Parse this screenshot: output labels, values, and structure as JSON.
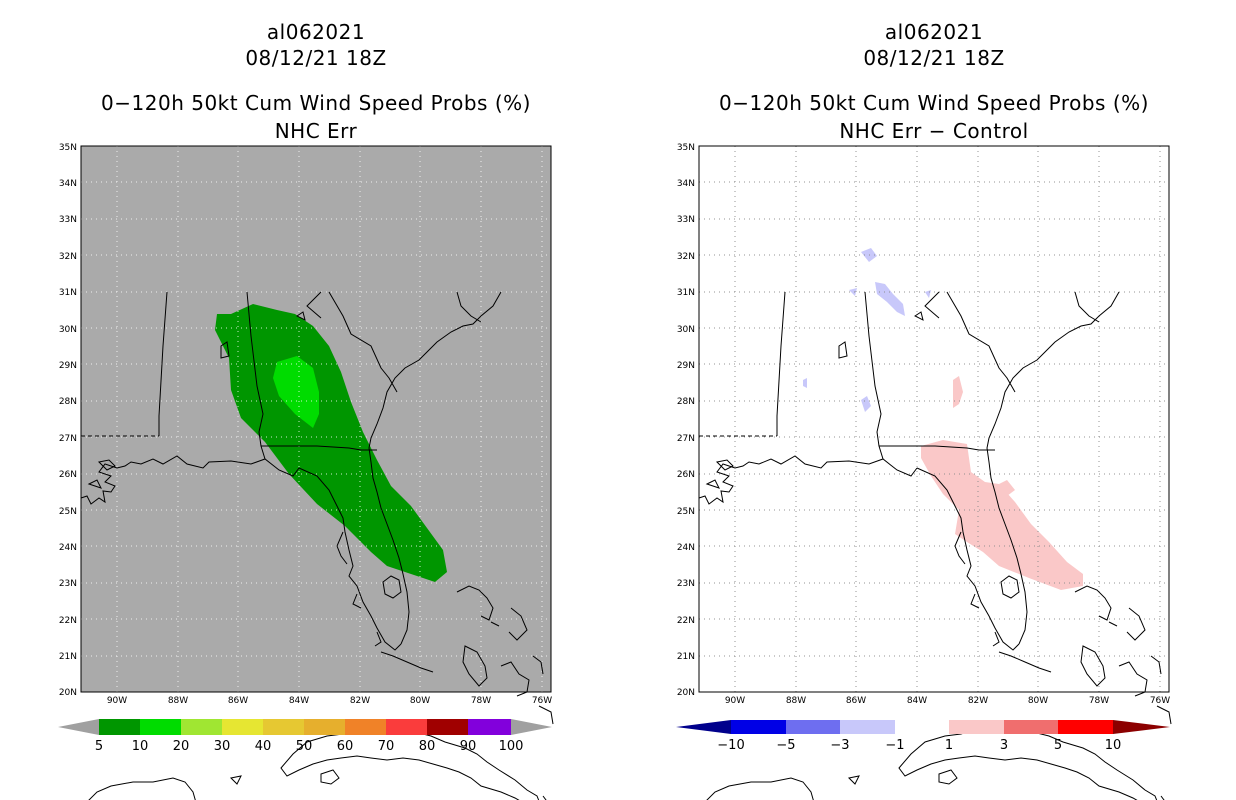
{
  "left": {
    "line1": "al062021",
    "line2": "08/12/21 18Z",
    "line3": "0−120h 50kt Cum Wind Speed Probs (%)",
    "line4": "NHC Err",
    "colorbar": {
      "labels": [
        "5",
        "10",
        "20",
        "30",
        "40",
        "50",
        "60",
        "70",
        "80",
        "90",
        "100"
      ],
      "colors": [
        "#009600",
        "#00dc00",
        "#a0e632",
        "#e6e632",
        "#e6c832",
        "#e6af2d",
        "#f08228",
        "#fa3c3c",
        "#a00000",
        "#8200dc"
      ],
      "ends": "#a0a0a0"
    },
    "background": "#aaaaaa"
  },
  "right": {
    "line1": "al062021",
    "line2": "08/12/21 18Z",
    "line3": "0−120h 50kt Cum Wind Speed Probs (%)",
    "line4": "NHC Err − Control",
    "colorbar": {
      "labels": [
        "−10",
        "−5",
        "−3",
        "−1",
        "1",
        "3",
        "5",
        "10"
      ],
      "colors": [
        "#0000e6",
        "#6e6ef0",
        "#c8c8fa",
        "#ffffff",
        "#fac8c8",
        "#f06e6e",
        "#ff0000"
      ],
      "end_low": "#00008c",
      "end_high": "#8c0000"
    },
    "background": "#ffffff"
  },
  "axes": {
    "lat_labels": [
      "35N",
      "34N",
      "33N",
      "32N",
      "31N",
      "30N",
      "29N",
      "28N",
      "27N",
      "26N",
      "25N",
      "24N",
      "23N",
      "22N",
      "21N",
      "20N"
    ],
    "lon_labels": [
      "90W",
      "88W",
      "86W",
      "84W",
      "82W",
      "80W",
      "78W",
      "76W"
    ]
  }
}
